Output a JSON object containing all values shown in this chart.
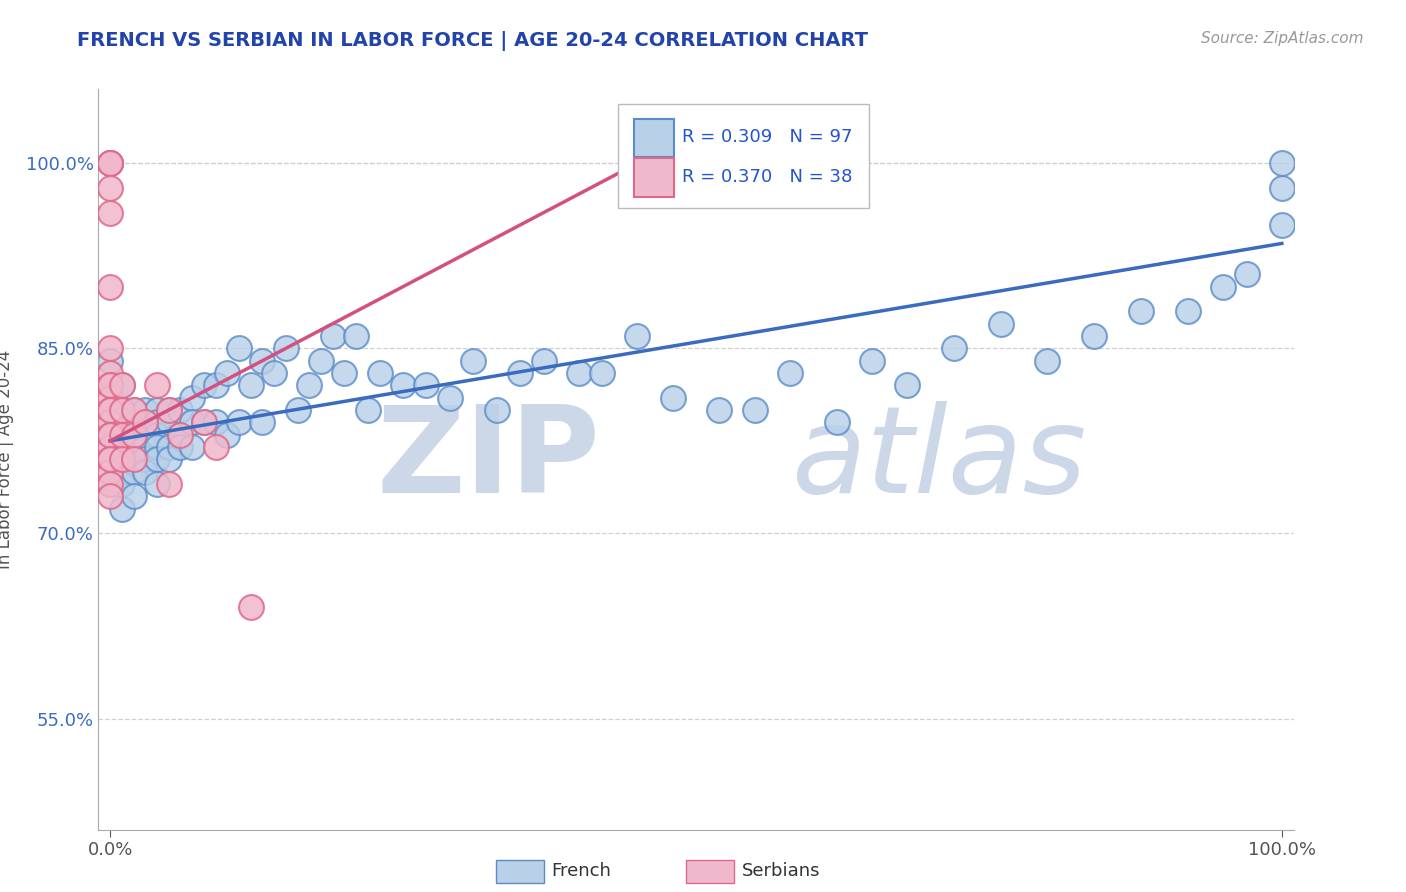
{
  "title": "FRENCH VS SERBIAN IN LABOR FORCE | AGE 20-24 CORRELATION CHART",
  "source_text": "Source: ZipAtlas.com",
  "ylabel": "In Labor Force | Age 20-24",
  "xlim": [
    -0.01,
    1.01
  ],
  "ylim": [
    0.46,
    1.06
  ],
  "yticks": [
    0.55,
    0.7,
    0.85,
    1.0
  ],
  "ytick_labels": [
    "55.0%",
    "70.0%",
    "85.0%",
    "100.0%"
  ],
  "xticks": [
    0.0,
    1.0
  ],
  "xtick_labels": [
    "0.0%",
    "100.0%"
  ],
  "french_R": 0.309,
  "french_N": 97,
  "serbian_R": 0.37,
  "serbian_N": 38,
  "french_color": "#b8d0e8",
  "french_edge_color": "#5b8cc8",
  "serbian_color": "#f0b8cc",
  "serbian_edge_color": "#e06888",
  "french_line_color": "#3a6bbf",
  "serbian_line_color": "#d45080",
  "title_color": "#2244aa",
  "watermark_zip_color": "#ccd8e8",
  "watermark_atlas_color": "#ccd8e8",
  "legend_r_color": "#2255cc",
  "legend_n_color": "#333333",
  "background_color": "#ffffff",
  "french_line_x0": 0.0,
  "french_line_y0": 0.775,
  "french_line_x1": 1.0,
  "french_line_y1": 0.935,
  "serbian_line_x0": 0.0,
  "serbian_line_y0": 0.775,
  "serbian_line_x1": 0.47,
  "serbian_line_y1": 1.01,
  "french_x": [
    0.0,
    0.0,
    0.0,
    0.0,
    0.0,
    0.0,
    0.01,
    0.01,
    0.01,
    0.01,
    0.01,
    0.01,
    0.01,
    0.01,
    0.01,
    0.01,
    0.01,
    0.02,
    0.02,
    0.02,
    0.02,
    0.02,
    0.02,
    0.02,
    0.02,
    0.02,
    0.03,
    0.03,
    0.03,
    0.03,
    0.03,
    0.03,
    0.04,
    0.04,
    0.04,
    0.04,
    0.04,
    0.04,
    0.05,
    0.05,
    0.05,
    0.05,
    0.06,
    0.06,
    0.06,
    0.07,
    0.07,
    0.07,
    0.08,
    0.08,
    0.09,
    0.09,
    0.1,
    0.1,
    0.11,
    0.11,
    0.12,
    0.13,
    0.13,
    0.14,
    0.15,
    0.16,
    0.17,
    0.18,
    0.19,
    0.2,
    0.21,
    0.22,
    0.23,
    0.25,
    0.27,
    0.29,
    0.31,
    0.33,
    0.35,
    0.37,
    0.4,
    0.42,
    0.45,
    0.48,
    0.52,
    0.55,
    0.58,
    0.62,
    0.65,
    0.68,
    0.72,
    0.76,
    0.8,
    0.84,
    0.88,
    0.92,
    0.95,
    0.97,
    1.0,
    1.0,
    1.0
  ],
  "french_y": [
    0.78,
    0.82,
    0.84,
    0.8,
    0.76,
    0.74,
    0.79,
    0.78,
    0.77,
    0.76,
    0.75,
    0.8,
    0.82,
    0.78,
    0.76,
    0.74,
    0.72,
    0.79,
    0.78,
    0.77,
    0.76,
    0.75,
    0.8,
    0.79,
    0.77,
    0.73,
    0.8,
    0.79,
    0.78,
    0.77,
    0.76,
    0.75,
    0.8,
    0.79,
    0.78,
    0.77,
    0.76,
    0.74,
    0.8,
    0.79,
    0.77,
    0.76,
    0.8,
    0.78,
    0.77,
    0.81,
    0.79,
    0.77,
    0.82,
    0.79,
    0.82,
    0.79,
    0.83,
    0.78,
    0.85,
    0.79,
    0.82,
    0.84,
    0.79,
    0.83,
    0.85,
    0.8,
    0.82,
    0.84,
    0.86,
    0.83,
    0.86,
    0.8,
    0.83,
    0.82,
    0.82,
    0.81,
    0.84,
    0.8,
    0.83,
    0.84,
    0.83,
    0.83,
    0.86,
    0.81,
    0.8,
    0.8,
    0.83,
    0.79,
    0.84,
    0.82,
    0.85,
    0.87,
    0.84,
    0.86,
    0.88,
    0.88,
    0.9,
    0.91,
    0.98,
    1.0,
    0.95
  ],
  "serbian_x": [
    0.0,
    0.0,
    0.0,
    0.0,
    0.0,
    0.0,
    0.0,
    0.0,
    0.0,
    0.0,
    0.0,
    0.0,
    0.0,
    0.0,
    0.0,
    0.0,
    0.0,
    0.0,
    0.0,
    0.0,
    0.0,
    0.0,
    0.0,
    0.01,
    0.01,
    0.01,
    0.01,
    0.02,
    0.02,
    0.02,
    0.03,
    0.04,
    0.05,
    0.05,
    0.06,
    0.08,
    0.09,
    0.12
  ],
  "serbian_y": [
    1.0,
    1.0,
    1.0,
    1.0,
    0.98,
    0.96,
    0.9,
    0.85,
    0.83,
    0.82,
    0.81,
    0.8,
    0.79,
    0.78,
    0.77,
    0.76,
    0.75,
    0.74,
    0.82,
    0.8,
    0.78,
    0.76,
    0.73,
    0.82,
    0.8,
    0.78,
    0.76,
    0.8,
    0.78,
    0.76,
    0.79,
    0.82,
    0.8,
    0.74,
    0.78,
    0.79,
    0.77,
    0.64
  ]
}
